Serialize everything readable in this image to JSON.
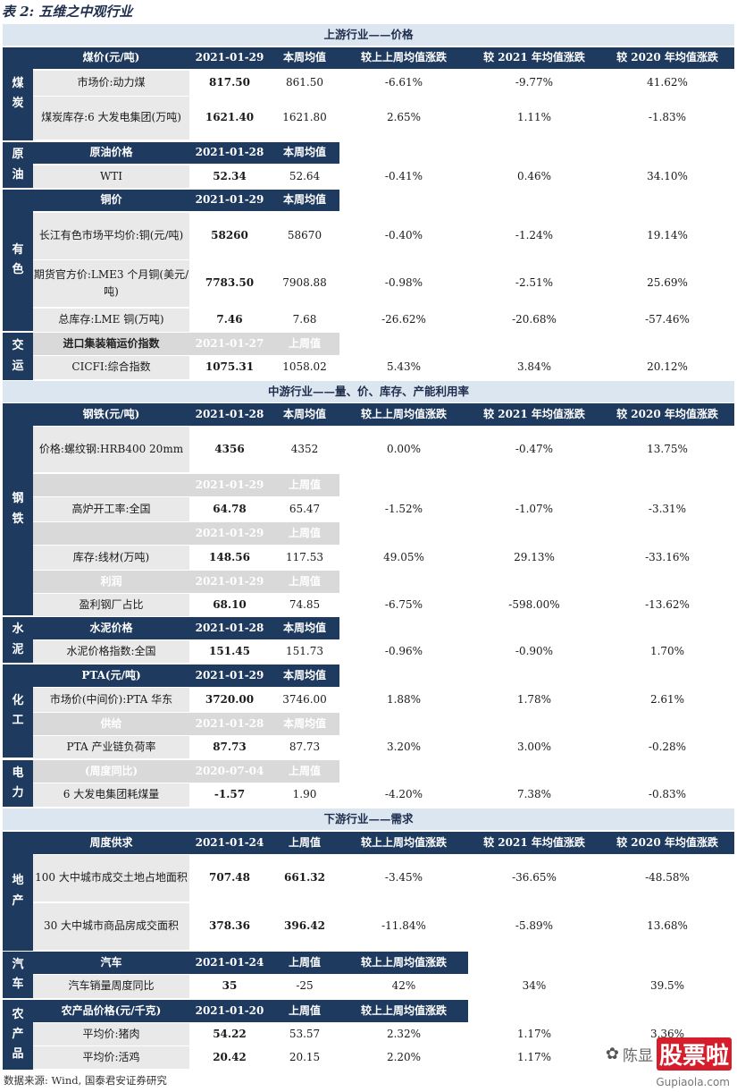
{
  "title": "表 2:  五维之中观行业",
  "source": "数据来源:  Wind, 国泰君安证券研究",
  "watermark": {
    "wechat_icon": "wechat-icon",
    "name": "陈显",
    "brand": "股票啦",
    "url": "Gupiaola.com"
  },
  "colors": {
    "header_navy": "#1f3a5f",
    "band_blue": "#dce6f1",
    "grey": "#d9d9d9"
  },
  "bands": {
    "upstream": "上游行业——价格",
    "midstream": "中游行业——量、价、库存、产能利用率",
    "downstream": "下游行业——需求"
  },
  "cols": {
    "wow": "较上上周均值涨跌",
    "vs2021": "较 2021 年均值涨跌",
    "vs2020": "较 2020 年均值涨跌",
    "avg": "本周均值",
    "prev": "上周值"
  },
  "sides": {
    "coal": "煤炭",
    "oil": "原油",
    "metal": "有色",
    "transport": "交运",
    "steel": "钢铁",
    "cement": "水泥",
    "chem": "化工",
    "power": "电力",
    "estate": "地产",
    "auto": "汽车",
    "agri": "农产品"
  },
  "coal": {
    "hdr": "煤价(元/吨)",
    "date": "2021-01-29",
    "r1": [
      "市场价:动力煤",
      "817.50",
      "861.50",
      "-6.61%",
      "-9.77%",
      "41.62%"
    ],
    "r2": [
      "煤炭库存:6 大发电集团(万吨)",
      "1621.40",
      "1621.80",
      "2.65%",
      "1.11%",
      "-1.83%"
    ]
  },
  "oil": {
    "hdr": "原油价格",
    "date": "2021-01-28",
    "r1": [
      "WTI",
      "52.34",
      "52.64",
      "-0.41%",
      "0.46%",
      "34.10%"
    ]
  },
  "metal": {
    "hdr": "铜价",
    "date": "2021-01-29",
    "r1": [
      "长江有色市场平均价:铜(元/吨)",
      "58260",
      "58670",
      "-0.40%",
      "-1.24%",
      "19.14%"
    ],
    "r2": [
      "期货官方价:LME3 个月铜(美元/吨)",
      "7783.50",
      "7908.88",
      "-0.98%",
      "-2.51%",
      "25.69%"
    ],
    "r3": [
      "总库存:LME 铜(万吨)",
      "7.46",
      "7.68",
      "-26.62%",
      "-20.68%",
      "-57.46%"
    ]
  },
  "transport": {
    "hdr": "进口集装箱运价指数",
    "date": "2021-01-27",
    "r1": [
      "CICFI:综合指数",
      "1075.31",
      "1058.02",
      "5.43%",
      "3.84%",
      "20.12%"
    ]
  },
  "steel": {
    "hdr": "钢铁(元/吨)",
    "date": "2021-01-28",
    "r1": [
      "价格:螺纹钢:HRB400 20mm",
      "4356",
      "4352",
      "0.00%",
      "-0.47%",
      "13.75%"
    ],
    "date2": "2021-01-29",
    "r2": [
      "高炉开工率:全国",
      "64.78",
      "65.47",
      "-1.52%",
      "-1.07%",
      "-3.31%"
    ],
    "date3": "2021-01-29",
    "r3": [
      "库存:线材(万吨)",
      "148.56",
      "117.53",
      "49.05%",
      "29.13%",
      "-33.16%"
    ],
    "hdr4": "利润",
    "date4": "2021-01-29",
    "r4": [
      "盈利钢厂占比",
      "68.10",
      "74.85",
      "-6.75%",
      "-598.00%",
      "-13.62%"
    ]
  },
  "cement": {
    "hdr": "水泥价格",
    "date": "2021-01-28",
    "r1": [
      "水泥价格指数:全国",
      "151.45",
      "151.73",
      "-0.96%",
      "-0.90%",
      "1.70%"
    ]
  },
  "chem": {
    "hdr": "PTA(元/吨)",
    "date": "2021-01-29",
    "r1": [
      "市场价(中间价):PTA 华东",
      "3720.00",
      "3746.00",
      "1.88%",
      "1.78%",
      "2.61%"
    ],
    "hdr2": "供给",
    "date2": "2021-01-28",
    "r2": [
      "PTA 产业链负荷率",
      "87.73",
      "87.73",
      "3.20%",
      "3.00%",
      "-0.28%"
    ]
  },
  "power": {
    "hdr": "(周度同比)",
    "date": "2020-07-04",
    "r1": [
      "6 大发电集团耗煤量",
      "-1.57",
      "1.90",
      "-4.20%",
      "7.38%",
      "-0.83%"
    ]
  },
  "estate": {
    "hdr": "周度供求",
    "date": "2021-01-24",
    "r1": [
      "100 大中城市成交土地占地面积",
      "707.48",
      "661.32",
      "-3.45%",
      "-36.65%",
      "-48.58%"
    ],
    "r2": [
      "30 大中城市商品房成交面积",
      "378.36",
      "396.42",
      "-11.84%",
      "-5.89%",
      "13.68%"
    ]
  },
  "auto": {
    "hdr": "汽车",
    "date": "2021-01-24",
    "r1": [
      "汽车销量周度同比",
      "35",
      "-25",
      "42%",
      "34%",
      "39.5%"
    ]
  },
  "agri": {
    "hdr": "农产品价格(元/千克)",
    "date": "2021-01-20",
    "r1": [
      "平均价:猪肉",
      "54.22",
      "53.57",
      "2.32%",
      "1.17%",
      "3.36%"
    ],
    "r2": [
      "平均价:活鸡",
      "20.42",
      "20.15",
      "2.20%",
      "1.17%",
      ""
    ]
  }
}
